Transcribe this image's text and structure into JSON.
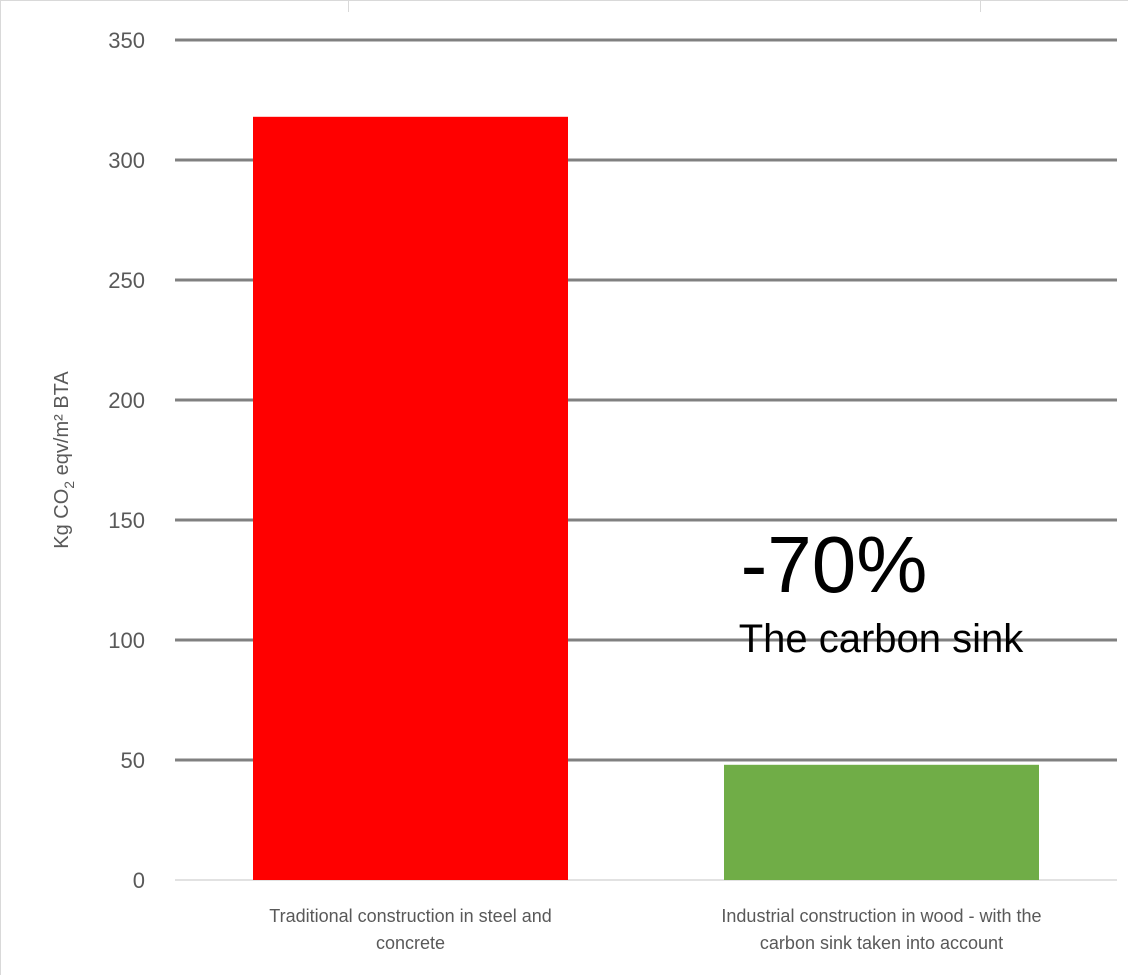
{
  "chart_data": {
    "type": "bar",
    "categories": [
      [
        "Traditional construction in steel and",
        "concrete"
      ],
      [
        "Industrial construction in wood - with the",
        "carbon sink taken into account"
      ]
    ],
    "values": [
      318,
      48
    ],
    "bar_colors": [
      "#ff0000",
      "#70ad47"
    ],
    "ylabel": {
      "prefix": "Kg CO",
      "subscript": "2",
      "suffix": " eqv/m² BTA"
    },
    "ylim": [
      0,
      350
    ],
    "yticks": [
      0,
      50,
      100,
      150,
      200,
      250,
      300,
      350
    ],
    "grid": true,
    "gridline_color": "#808080",
    "annotations": [
      {
        "text": "-70%",
        "style": "large"
      },
      {
        "text": "The carbon sink",
        "style": "medium"
      }
    ]
  }
}
